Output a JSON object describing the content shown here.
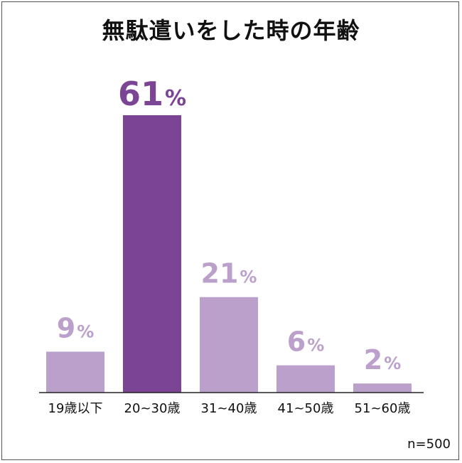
{
  "title": "無駄遣いをした時の年齢",
  "sample_size": "n=500",
  "colors": {
    "highlight": "#7b4495",
    "normal": "#bca0cc",
    "axis": "#222222"
  },
  "chart_data": {
    "type": "bar",
    "title": "無駄遣いをした時の年齢",
    "categories": [
      "19歳以下",
      "20~30歳",
      "31~40歳",
      "41~50歳",
      "51~60歳"
    ],
    "values": [
      9,
      61,
      21,
      6,
      2
    ],
    "value_labels": [
      "9",
      "61",
      "21",
      "6",
      "2"
    ],
    "unit": "%",
    "highlight_index": 1,
    "ylim": [
      0,
      61
    ],
    "grid": false,
    "legend": "none",
    "xlabel": "",
    "ylabel": ""
  }
}
